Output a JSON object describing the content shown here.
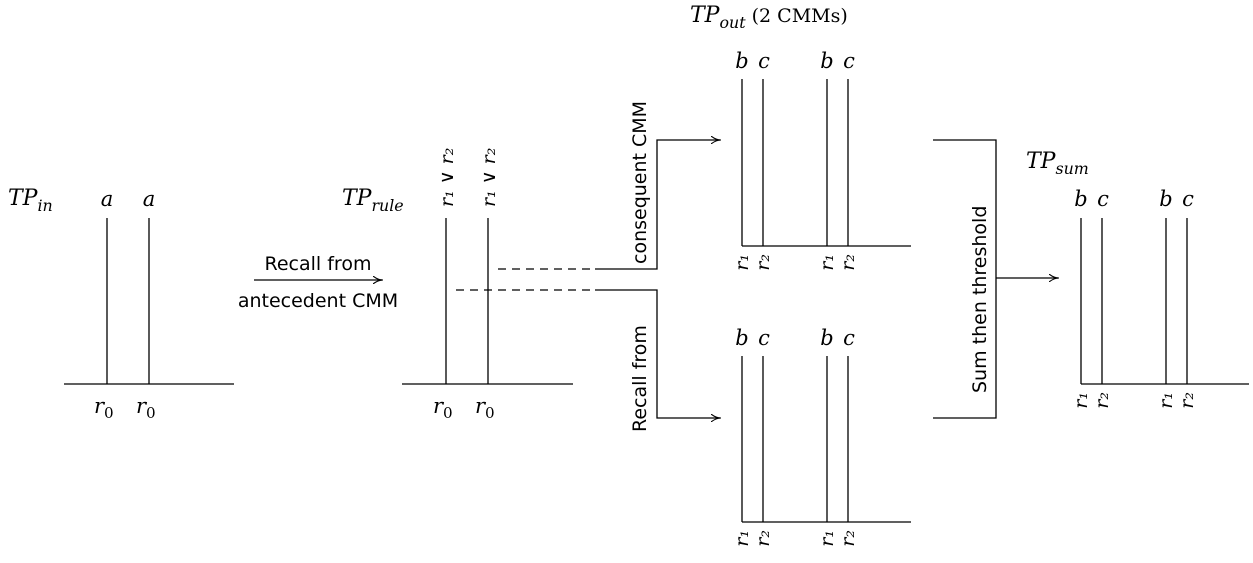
{
  "tp_in": {
    "name": "TP",
    "sub": "in",
    "top_labels": [
      "a",
      "a"
    ],
    "bottom_labels": [
      {
        "v": "r",
        "s": "0"
      },
      {
        "v": "r",
        "s": "0"
      }
    ]
  },
  "recall_antecedent": [
    "Recall from",
    "antecedent CMM"
  ],
  "tp_rule": {
    "name": "TP",
    "sub": "rule",
    "top_labels": [
      "r₁ ∨ r₂",
      "r₁ ∨ r₂"
    ],
    "bottom_labels": [
      {
        "v": "r",
        "s": "0"
      },
      {
        "v": "r",
        "s": "0"
      }
    ]
  },
  "consequent_label": "consequent CMM",
  "recall_from_label": "Recall from",
  "tp_out": {
    "name": "TP",
    "sub": "out",
    "suffix": " (2 CMMs)",
    "top_labels": [
      "b",
      "c",
      "b",
      "c"
    ],
    "bottom_labels": [
      "r₁",
      "r₂",
      "r₁",
      "r₂"
    ]
  },
  "sum_threshold_label": "Sum then threshold",
  "tp_sum": {
    "name": "TP",
    "sub": "sum",
    "top_labels": [
      "b",
      "c",
      "b",
      "c"
    ],
    "bottom_labels": [
      "r₁",
      "r₂",
      "r₁",
      "r₂"
    ]
  }
}
